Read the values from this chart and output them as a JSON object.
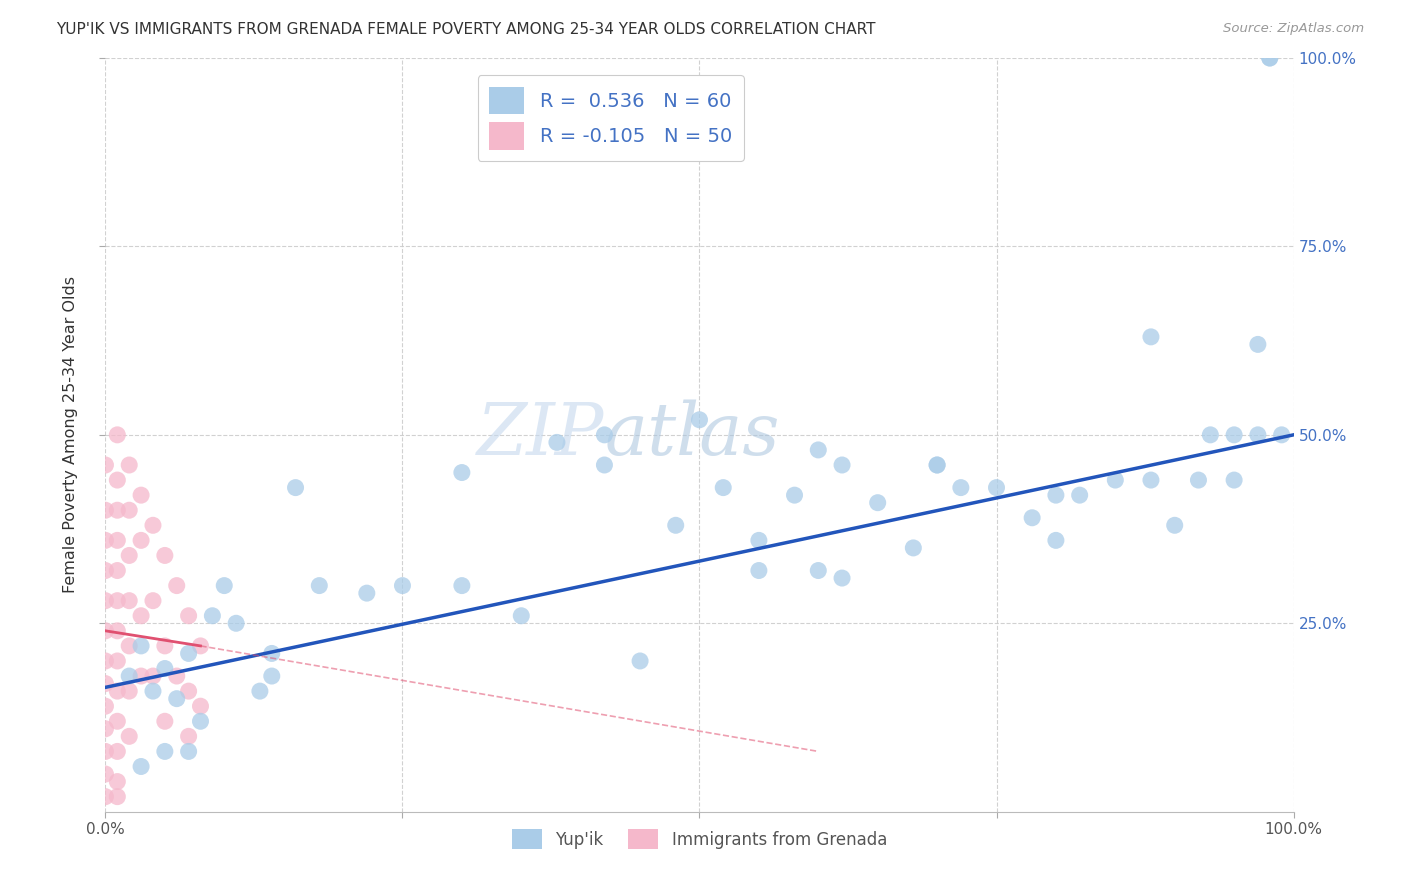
{
  "title": "YUP'IK VS IMMIGRANTS FROM GRENADA FEMALE POVERTY AMONG 25-34 YEAR OLDS CORRELATION CHART",
  "source": "Source: ZipAtlas.com",
  "ylabel": "Female Poverty Among 25-34 Year Olds",
  "watermark_zip": "ZIP",
  "watermark_atlas": "atlas",
  "xmin": 0.0,
  "xmax": 1.0,
  "ymin": 0.0,
  "ymax": 1.0,
  "yupik_color": "#aacce8",
  "grenada_color": "#f5b8cb",
  "yupik_line_color": "#2255bb",
  "grenada_line_color": "#e05070",
  "R_yupik": 0.536,
  "N_yupik": 60,
  "R_grenada": -0.105,
  "N_grenada": 50,
  "xtick_labels": [
    "0.0%",
    "",
    "",
    "",
    "100.0%"
  ],
  "xtick_vals": [
    0.0,
    0.25,
    0.5,
    0.75,
    1.0
  ],
  "ytick_vals": [
    0.25,
    0.5,
    0.75,
    1.0
  ],
  "ytick_right_labels": [
    "25.0%",
    "50.0%",
    "75.0%",
    "100.0%"
  ],
  "right_axis_color": "#4472c4",
  "legend_r1": "R =  0.536",
  "legend_n1": "N = 60",
  "legend_r2": "R = -0.105",
  "legend_n2": "N = 50",
  "legend_bottom1": "Yup'ik",
  "legend_bottom2": "Immigrants from Grenada",
  "yupik_x": [
    0.02,
    0.03,
    0.04,
    0.05,
    0.06,
    0.07,
    0.08,
    0.09,
    0.1,
    0.11,
    0.13,
    0.14,
    0.16,
    0.18,
    0.22,
    0.25,
    0.3,
    0.38,
    0.42,
    0.48,
    0.5,
    0.52,
    0.55,
    0.58,
    0.6,
    0.62,
    0.65,
    0.68,
    0.7,
    0.72,
    0.75,
    0.78,
    0.8,
    0.82,
    0.85,
    0.88,
    0.9,
    0.92,
    0.93,
    0.95,
    0.97,
    0.98,
    0.98,
    0.99,
    0.14,
    0.07,
    0.03,
    0.05,
    0.45,
    0.62,
    0.8,
    0.35,
    0.55,
    0.7,
    0.88,
    0.95,
    0.97,
    0.6,
    0.42,
    0.3
  ],
  "yupik_y": [
    0.18,
    0.22,
    0.16,
    0.19,
    0.15,
    0.21,
    0.12,
    0.26,
    0.3,
    0.25,
    0.16,
    0.18,
    0.43,
    0.3,
    0.29,
    0.3,
    0.3,
    0.49,
    0.46,
    0.38,
    0.52,
    0.43,
    0.36,
    0.42,
    0.48,
    0.46,
    0.41,
    0.35,
    0.46,
    0.43,
    0.43,
    0.39,
    0.36,
    0.42,
    0.44,
    0.44,
    0.38,
    0.44,
    0.5,
    0.44,
    0.5,
    1.0,
    1.0,
    0.5,
    0.21,
    0.08,
    0.06,
    0.08,
    0.2,
    0.31,
    0.42,
    0.26,
    0.32,
    0.46,
    0.63,
    0.5,
    0.62,
    0.32,
    0.5,
    0.45
  ],
  "grenada_x": [
    0.0,
    0.0,
    0.0,
    0.0,
    0.0,
    0.0,
    0.0,
    0.0,
    0.0,
    0.0,
    0.0,
    0.0,
    0.0,
    0.01,
    0.01,
    0.01,
    0.01,
    0.01,
    0.01,
    0.01,
    0.01,
    0.01,
    0.01,
    0.01,
    0.01,
    0.01,
    0.02,
    0.02,
    0.02,
    0.02,
    0.02,
    0.02,
    0.02,
    0.03,
    0.03,
    0.03,
    0.03,
    0.04,
    0.04,
    0.04,
    0.05,
    0.05,
    0.05,
    0.06,
    0.06,
    0.07,
    0.07,
    0.07,
    0.08,
    0.08
  ],
  "grenada_y": [
    0.46,
    0.4,
    0.36,
    0.32,
    0.28,
    0.24,
    0.2,
    0.17,
    0.14,
    0.11,
    0.08,
    0.05,
    0.02,
    0.5,
    0.44,
    0.4,
    0.36,
    0.32,
    0.28,
    0.24,
    0.2,
    0.16,
    0.12,
    0.08,
    0.04,
    0.02,
    0.46,
    0.4,
    0.34,
    0.28,
    0.22,
    0.16,
    0.1,
    0.42,
    0.36,
    0.26,
    0.18,
    0.38,
    0.28,
    0.18,
    0.34,
    0.22,
    0.12,
    0.3,
    0.18,
    0.26,
    0.16,
    0.1,
    0.22,
    0.14
  ],
  "line_yupik_x0": 0.0,
  "line_yupik_y0": 0.165,
  "line_yupik_x1": 1.0,
  "line_yupik_y1": 0.5,
  "line_grenada_x0": 0.0,
  "line_grenada_x1": 0.6,
  "line_grenada_y0": 0.24,
  "line_grenada_y1": 0.08
}
